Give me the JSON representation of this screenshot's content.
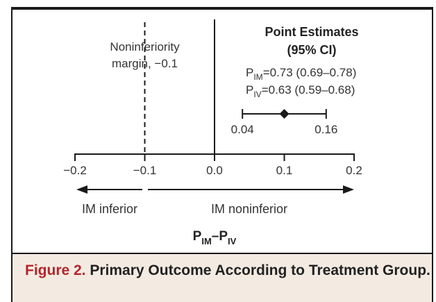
{
  "chart_data": {
    "type": "forest",
    "xlabel": "P",
    "xlabel_parts": [
      "P",
      "IM",
      "–P",
      "IV"
    ],
    "xlim": [
      -0.2,
      0.2
    ],
    "xticks": [
      -0.2,
      -0.1,
      0.0,
      0.1,
      0.2
    ],
    "xtick_labels": [
      "−0.2",
      "−0.1",
      "0.0",
      "0.1",
      "0.2"
    ],
    "noninferiority_margin": -0.1,
    "margin_label_line1": "Noninferiority",
    "margin_label_line2": "margin, −0.1",
    "zero_line": 0.0,
    "estimate": {
      "point": 0.1,
      "ci_low": 0.04,
      "ci_high": 0.16,
      "low_label": "0.04",
      "high_label": "0.16"
    },
    "legend": {
      "title_line1": "Point Estimates",
      "title_line2": "(95% CI)",
      "entries": [
        {
          "p": "P",
          "sub": "IM",
          "text": "=0.73 (0.69–0.78)"
        },
        {
          "p": "P",
          "sub": "IV",
          "text": "=0.63 (0.59–0.68)"
        }
      ]
    },
    "arrows": {
      "left_label": "IM inferior",
      "right_label": "IM noninferior"
    }
  },
  "caption": {
    "figure_label": "Figure 2.",
    "title": "Primary Outcome According to Treatment Group."
  },
  "colors": {
    "figure_label": "#b3252b",
    "caption_bg": "#f3ebe2",
    "ink": "#1a1a1a"
  }
}
